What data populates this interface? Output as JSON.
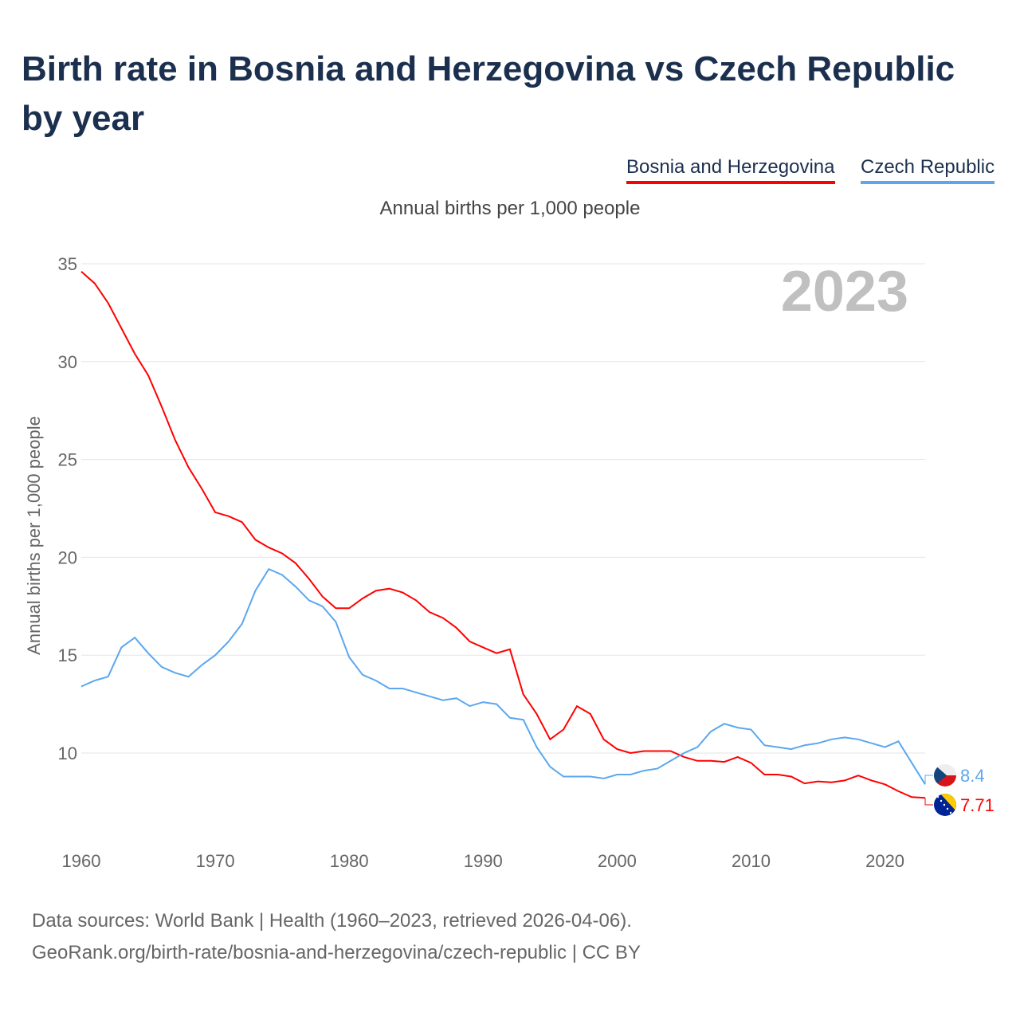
{
  "title": "Birth rate in Bosnia and Herzegovina vs Czech Republic by year",
  "footer": {
    "line1": "Data sources: World Bank | Health (1960–2023, retrieved 2026-04-06).",
    "line2": "GeoRank.org/birth-rate/bosnia-and-herzegovina/czech-republic | CC BY"
  },
  "chart_data": {
    "type": "line",
    "title": "Birth rate in Bosnia and Herzegovina vs Czech Republic by year",
    "subtitle": "Annual births per 1,000 people",
    "ylabel": "Annual births per 1,000 people",
    "xlabel": "",
    "year_label": "2023",
    "ylim": [
      5,
      35
    ],
    "yticks": [
      "10",
      "15",
      "20",
      "25",
      "30",
      "35"
    ],
    "xticks": [
      "1960",
      "1970",
      "1980",
      "1990",
      "2000",
      "2010",
      "2020"
    ],
    "legend_position": "top-right",
    "grid": true,
    "x_start": 1960,
    "series": [
      {
        "name": "Bosnia and Herzegovina",
        "color": "#ff0000",
        "end_label": "7.71",
        "values": [
          34.6,
          34.0,
          33.0,
          31.7,
          30.4,
          29.3,
          27.7,
          26.0,
          24.6,
          23.5,
          22.3,
          22.1,
          21.8,
          20.9,
          20.5,
          20.2,
          19.7,
          18.9,
          18.0,
          17.4,
          17.4,
          17.9,
          18.3,
          18.4,
          18.2,
          17.8,
          17.2,
          16.9,
          16.4,
          15.7,
          15.4,
          15.1,
          15.3,
          13.0,
          12.0,
          10.7,
          11.2,
          12.4,
          12.0,
          10.7,
          10.2,
          10.0,
          10.1,
          10.1,
          10.1,
          9.8,
          9.6,
          9.6,
          9.55,
          9.8,
          9.5,
          8.9,
          8.9,
          8.8,
          8.45,
          8.55,
          8.5,
          8.6,
          8.85,
          8.6,
          8.4,
          8.05,
          7.75,
          7.71
        ]
      },
      {
        "name": "Czech Republic",
        "color": "#5ba7ef",
        "end_label": "8.4",
        "values": [
          13.4,
          13.7,
          13.9,
          15.4,
          15.9,
          15.1,
          14.4,
          14.1,
          13.9,
          14.5,
          15.0,
          15.7,
          16.6,
          18.3,
          19.4,
          19.1,
          18.5,
          17.8,
          17.5,
          16.7,
          14.9,
          14.0,
          13.7,
          13.3,
          13.3,
          13.1,
          12.9,
          12.7,
          12.8,
          12.4,
          12.6,
          12.5,
          11.8,
          11.7,
          10.3,
          9.3,
          8.8,
          8.8,
          8.8,
          8.7,
          8.9,
          8.9,
          9.1,
          9.2,
          9.6,
          10.0,
          10.3,
          11.1,
          11.5,
          11.3,
          11.2,
          10.4,
          10.3,
          10.2,
          10.4,
          10.5,
          10.7,
          10.8,
          10.7,
          10.5,
          10.3,
          10.6,
          9.5,
          8.4
        ]
      }
    ]
  }
}
